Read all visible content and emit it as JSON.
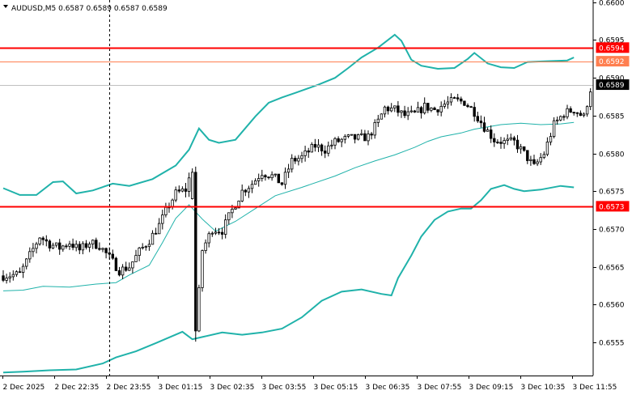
{
  "header": {
    "symbol_line": "AUDUSD,M5  0.6587 0.6589 0.6587 0.6589"
  },
  "colors": {
    "candle": "#000000",
    "band": "#20b2aa",
    "level_line": "#ff0000",
    "bid_line": "#ff7f50",
    "ask_line": "#c0c0c0",
    "axis": "#000000"
  },
  "chart_data": {
    "type": "candlestick",
    "instrument": "AUDUSD",
    "timeframe": "M5",
    "ylim": [
      0.65506,
      0.66003
    ],
    "y_ticks": [
      "0.6600",
      "0.6595",
      "0.6590",
      "0.6585",
      "0.6580",
      "0.6575",
      "0.6570",
      "0.6565",
      "0.6560",
      "0.6555"
    ],
    "x_ticks": [
      "2 Dec 2025",
      "2 Dec 22:35",
      "2 Dec 23:55",
      "3 Dec 01:15",
      "3 Dec 02:35",
      "3 Dec 03:55",
      "3 Dec 05:15",
      "3 Dec 06:35",
      "3 Dec 07:55",
      "3 Dec 09:15",
      "3 Dec 10:35",
      "3 Dec 11:55"
    ],
    "bar_count": 178,
    "separator_bar": 32,
    "levels": [
      {
        "label": "0.6594",
        "price": 0.6594,
        "kind": "resistance"
      },
      {
        "label": "0.6573",
        "price": 0.6573,
        "kind": "support"
      }
    ],
    "bid": {
      "label": "0.6592",
      "price": 0.65922
    },
    "ask": {
      "label": "0.6589",
      "price": 0.65891
    },
    "bollinger": {
      "upper": [
        [
          0,
          0.65754
        ],
        [
          5,
          0.65745
        ],
        [
          10,
          0.65745
        ],
        [
          15,
          0.65762
        ],
        [
          18,
          0.65763
        ],
        [
          22,
          0.65747
        ],
        [
          27,
          0.65751
        ],
        [
          33,
          0.6576
        ],
        [
          38,
          0.65757
        ],
        [
          45,
          0.65766
        ],
        [
          52,
          0.65784
        ],
        [
          56,
          0.65805
        ],
        [
          59,
          0.65833
        ],
        [
          62,
          0.65818
        ],
        [
          65,
          0.65814
        ],
        [
          70,
          0.65818
        ],
        [
          76,
          0.65849
        ],
        [
          80,
          0.65867
        ],
        [
          84,
          0.65874
        ],
        [
          88,
          0.6588
        ],
        [
          95,
          0.65891
        ],
        [
          100,
          0.659
        ],
        [
          104,
          0.65913
        ],
        [
          108,
          0.65927
        ],
        [
          113,
          0.6594
        ],
        [
          118,
          0.65957
        ],
        [
          120,
          0.65949
        ],
        [
          123,
          0.65924
        ],
        [
          126,
          0.65916
        ],
        [
          131,
          0.65912
        ],
        [
          136,
          0.65913
        ],
        [
          140,
          0.65925
        ],
        [
          142,
          0.65933
        ],
        [
          146,
          0.65919
        ],
        [
          150,
          0.65914
        ],
        [
          154,
          0.65913
        ],
        [
          158,
          0.65921
        ],
        [
          164,
          0.65922
        ],
        [
          170,
          0.65923
        ],
        [
          172,
          0.65927
        ]
      ],
      "middle": [
        [
          0,
          0.65618
        ],
        [
          6,
          0.65619
        ],
        [
          12,
          0.65624
        ],
        [
          20,
          0.65623
        ],
        [
          28,
          0.65627
        ],
        [
          34,
          0.65629
        ],
        [
          38,
          0.65639
        ],
        [
          44,
          0.65652
        ],
        [
          48,
          0.65682
        ],
        [
          52,
          0.65714
        ],
        [
          56,
          0.65732
        ],
        [
          60,
          0.65713
        ],
        [
          64,
          0.65697
        ],
        [
          70,
          0.6571
        ],
        [
          76,
          0.65727
        ],
        [
          82,
          0.65744
        ],
        [
          90,
          0.65755
        ],
        [
          100,
          0.6577
        ],
        [
          106,
          0.65781
        ],
        [
          112,
          0.6579
        ],
        [
          118,
          0.65798
        ],
        [
          124,
          0.65808
        ],
        [
          128,
          0.65816
        ],
        [
          132,
          0.65822
        ],
        [
          138,
          0.65827
        ],
        [
          142,
          0.65832
        ],
        [
          150,
          0.65838
        ],
        [
          156,
          0.6584
        ],
        [
          162,
          0.65838
        ],
        [
          168,
          0.65839
        ],
        [
          172,
          0.65841
        ]
      ],
      "lower": [
        [
          0,
          0.6551
        ],
        [
          6,
          0.65511
        ],
        [
          14,
          0.65513
        ],
        [
          22,
          0.65514
        ],
        [
          30,
          0.65522
        ],
        [
          34,
          0.6553
        ],
        [
          40,
          0.65538
        ],
        [
          46,
          0.65549
        ],
        [
          54,
          0.65564
        ],
        [
          57,
          0.65554
        ],
        [
          60,
          0.65557
        ],
        [
          66,
          0.65563
        ],
        [
          72,
          0.6556
        ],
        [
          78,
          0.65563
        ],
        [
          84,
          0.65568
        ],
        [
          90,
          0.65583
        ],
        [
          96,
          0.65605
        ],
        [
          102,
          0.65617
        ],
        [
          108,
          0.6562
        ],
        [
          114,
          0.65614
        ],
        [
          117,
          0.65612
        ],
        [
          119,
          0.65635
        ],
        [
          123,
          0.65665
        ],
        [
          126,
          0.6569
        ],
        [
          130,
          0.65712
        ],
        [
          134,
          0.65723
        ],
        [
          138,
          0.65727
        ],
        [
          141,
          0.65727
        ],
        [
          144,
          0.65738
        ],
        [
          147,
          0.65753
        ],
        [
          151,
          0.65758
        ],
        [
          154,
          0.65753
        ],
        [
          157,
          0.6575
        ],
        [
          162,
          0.65752
        ],
        [
          168,
          0.65757
        ],
        [
          172,
          0.65755
        ]
      ]
    },
    "close_path": [
      [
        0,
        0.65638
      ],
      [
        5,
        0.6564
      ],
      [
        8,
        0.65665
      ],
      [
        11,
        0.6569
      ],
      [
        14,
        0.6568
      ],
      [
        17,
        0.65675
      ],
      [
        20,
        0.65682
      ],
      [
        23,
        0.65672
      ],
      [
        26,
        0.65682
      ],
      [
        29,
        0.65678
      ],
      [
        32,
        0.65662
      ],
      [
        35,
        0.65645
      ],
      [
        38,
        0.6565
      ],
      [
        41,
        0.6567
      ],
      [
        44,
        0.65685
      ],
      [
        47,
        0.65705
      ],
      [
        50,
        0.65732
      ],
      [
        52,
        0.65747
      ],
      [
        55,
        0.65752
      ],
      [
        57,
        0.6578
      ],
      [
        58,
        0.65562
      ],
      [
        60,
        0.65672
      ],
      [
        63,
        0.657
      ],
      [
        66,
        0.65698
      ],
      [
        69,
        0.65725
      ],
      [
        72,
        0.6575
      ],
      [
        75,
        0.6576
      ],
      [
        78,
        0.65775
      ],
      [
        81,
        0.6577
      ],
      [
        84,
        0.6576
      ],
      [
        87,
        0.6579
      ],
      [
        90,
        0.65795
      ],
      [
        94,
        0.6581
      ],
      [
        97,
        0.65805
      ],
      [
        100,
        0.65815
      ],
      [
        104,
        0.6582
      ],
      [
        107,
        0.6582
      ],
      [
        110,
        0.65822
      ],
      [
        113,
        0.65842
      ],
      [
        115,
        0.6586
      ],
      [
        118,
        0.65858
      ],
      [
        121,
        0.6585
      ],
      [
        124,
        0.65852
      ],
      [
        127,
        0.65862
      ],
      [
        130,
        0.65858
      ],
      [
        133,
        0.65865
      ],
      [
        136,
        0.6587
      ],
      [
        139,
        0.65868
      ],
      [
        142,
        0.65855
      ],
      [
        145,
        0.65835
      ],
      [
        148,
        0.65818
      ],
      [
        151,
        0.65815
      ],
      [
        154,
        0.65815
      ],
      [
        157,
        0.658
      ],
      [
        160,
        0.65782
      ],
      [
        163,
        0.658
      ],
      [
        166,
        0.65838
      ],
      [
        169,
        0.65853
      ],
      [
        172,
        0.65858
      ],
      [
        175,
        0.65848
      ],
      [
        177,
        0.65885
      ]
    ]
  }
}
